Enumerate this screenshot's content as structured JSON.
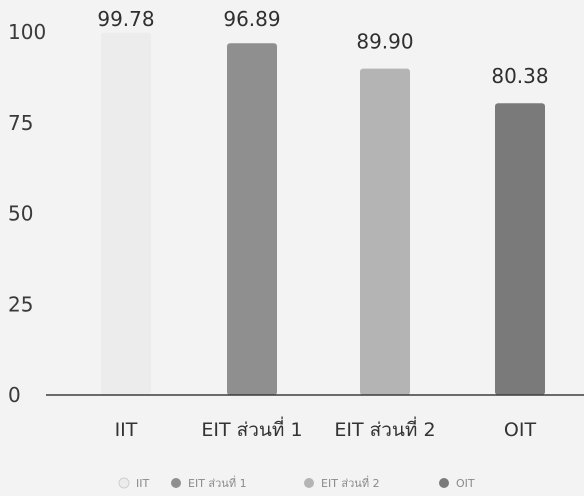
{
  "chart_data": {
    "type": "bar",
    "categories": [
      "IIT",
      "EIT ส่วนที่ 1",
      "EIT ส่วนที่ 2",
      "OIT"
    ],
    "values": [
      99.78,
      96.89,
      89.9,
      80.38
    ],
    "value_labels": [
      "99.78",
      "96.89",
      "89.90",
      "80.38"
    ],
    "y_ticks": [
      "0",
      "25",
      "50",
      "75",
      "100"
    ],
    "ylim": [
      0,
      100
    ],
    "title": "",
    "xlabel": "",
    "ylabel": "",
    "grid": false,
    "legend_position": "bottom",
    "legend": [
      "IIT",
      "EIT ส่วนที่ 1",
      "EIT ส่วนที่ 2",
      "OIT"
    ],
    "colors": [
      "#ececec",
      "#8f8f8f",
      "#b4b4b4",
      "#7a7a7a"
    ]
  }
}
